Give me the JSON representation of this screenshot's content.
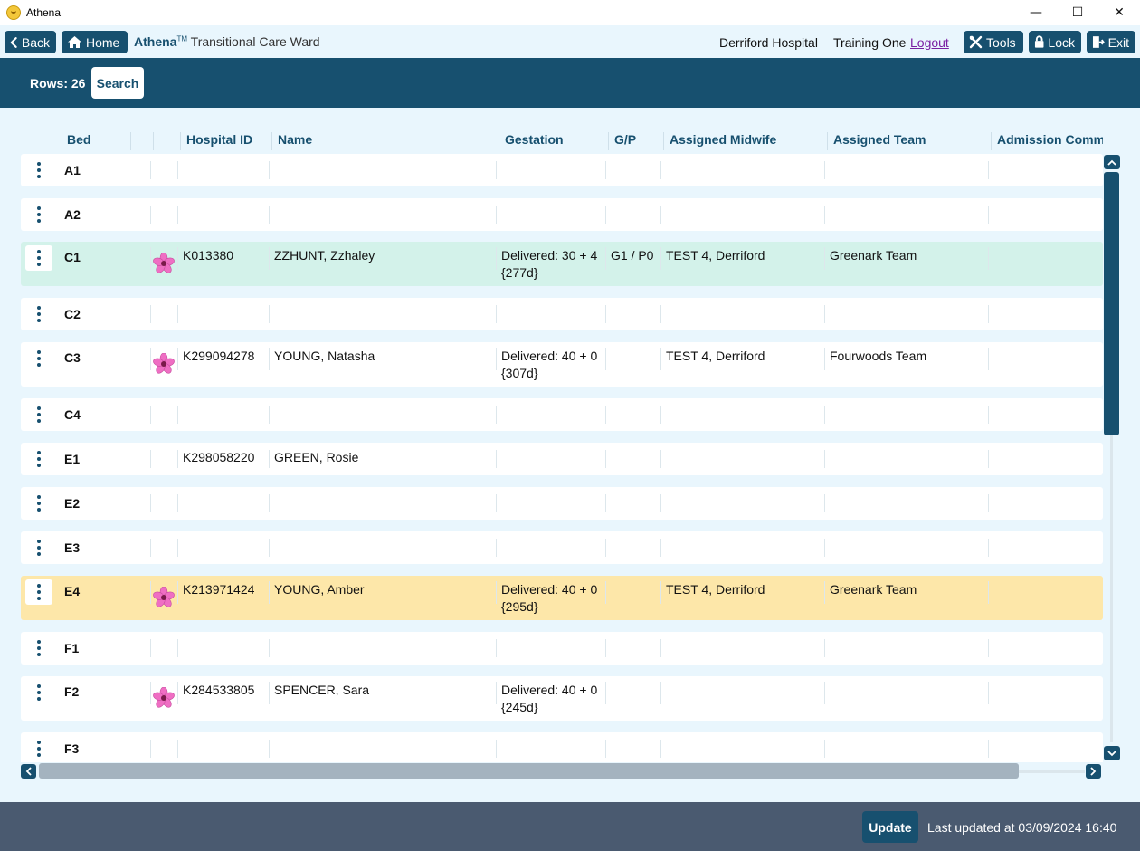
{
  "window": {
    "title": "Athena",
    "minimize": "—",
    "maximize": "☐",
    "close": "✕"
  },
  "nav": {
    "back_label": "Back",
    "home_label": "Home",
    "brand": "Athena",
    "brand_tm": "TM",
    "ward": "Transitional Care Ward",
    "hospital": "Derriford Hospital",
    "user": "Training One",
    "logout_label": "Logout",
    "tools_label": "Tools",
    "lock_label": "Lock",
    "exit_label": "Exit"
  },
  "toolbar": {
    "rows_label": "Rows: 26",
    "search_label": "Search"
  },
  "columns": [
    "Bed",
    "Hospital ID",
    "Name",
    "Gestation",
    "G/P",
    "Assigned Midwife",
    "Assigned Team",
    "Admission Comm"
  ],
  "rows": [
    {
      "bed": "A1",
      "id": "",
      "name": "",
      "gest1": "",
      "gest2": "",
      "gp": "",
      "midwife": "",
      "team": "",
      "flower": false,
      "highlight": ""
    },
    {
      "bed": "A2",
      "id": "",
      "name": "",
      "gest1": "",
      "gest2": "",
      "gp": "",
      "midwife": "",
      "team": "",
      "flower": false,
      "highlight": ""
    },
    {
      "bed": "C1",
      "id": "K013380",
      "name": "ZZHUNT, Zzhaley",
      "gest1": "Delivered: 30 + 4",
      "gest2": "{277d}",
      "gp": "G1 / P0",
      "midwife": "TEST 4, Derriford",
      "team": "Greenark Team",
      "flower": true,
      "highlight": "green"
    },
    {
      "bed": "C2",
      "id": "",
      "name": "",
      "gest1": "",
      "gest2": "",
      "gp": "",
      "midwife": "",
      "team": "",
      "flower": false,
      "highlight": ""
    },
    {
      "bed": "C3",
      "id": "K299094278",
      "name": "YOUNG, Natasha",
      "gest1": "Delivered: 40 + 0",
      "gest2": "{307d}",
      "gp": "",
      "midwife": "TEST 4, Derriford",
      "team": "Fourwoods Team",
      "flower": true,
      "highlight": ""
    },
    {
      "bed": "C4",
      "id": "",
      "name": "",
      "gest1": "",
      "gest2": "",
      "gp": "",
      "midwife": "",
      "team": "",
      "flower": false,
      "highlight": ""
    },
    {
      "bed": "E1",
      "id": "K298058220",
      "name": "GREEN, Rosie",
      "gest1": "",
      "gest2": "",
      "gp": "",
      "midwife": "",
      "team": "",
      "flower": false,
      "highlight": ""
    },
    {
      "bed": "E2",
      "id": "",
      "name": "",
      "gest1": "",
      "gest2": "",
      "gp": "",
      "midwife": "",
      "team": "",
      "flower": false,
      "highlight": ""
    },
    {
      "bed": "E3",
      "id": "",
      "name": "",
      "gest1": "",
      "gest2": "",
      "gp": "",
      "midwife": "",
      "team": "",
      "flower": false,
      "highlight": ""
    },
    {
      "bed": "E4",
      "id": "K213971424",
      "name": "YOUNG, Amber",
      "gest1": "Delivered: 40 + 0",
      "gest2": "{295d}",
      "gp": "",
      "midwife": "TEST 4, Derriford",
      "team": "Greenark Team",
      "flower": true,
      "highlight": "yellow"
    },
    {
      "bed": "F1",
      "id": "",
      "name": "",
      "gest1": "",
      "gest2": "",
      "gp": "",
      "midwife": "",
      "team": "",
      "flower": false,
      "highlight": ""
    },
    {
      "bed": "F2",
      "id": "K284533805",
      "name": "SPENCER, Sara",
      "gest1": "Delivered: 40 + 0",
      "gest2": "{245d}",
      "gp": "",
      "midwife": "",
      "team": "",
      "flower": true,
      "highlight": ""
    },
    {
      "bed": "F3",
      "id": "",
      "name": "",
      "gest1": "",
      "gest2": "",
      "gp": "",
      "midwife": "",
      "team": "",
      "flower": false,
      "highlight": ""
    }
  ],
  "footer": {
    "update_label": "Update",
    "last_updated": "Last updated at 03/09/2024 16:40"
  },
  "colors": {
    "primary": "#17506f",
    "highlight_green": "#d3f2ea",
    "highlight_yellow": "#fde7a9",
    "footer": "#4a5a70",
    "logout": "#7a1fa2"
  },
  "icons": [
    "back-chevron-icon",
    "home-icon",
    "tools-icon",
    "lock-icon",
    "exit-icon",
    "kebab-menu-icon",
    "flower-icon"
  ]
}
